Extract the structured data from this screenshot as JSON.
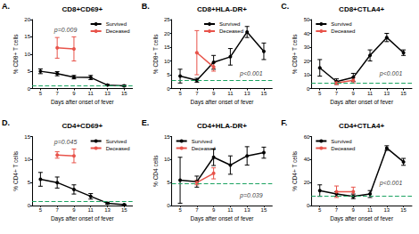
{
  "chart_data": [
    {
      "type": "line",
      "panel_label": "A.",
      "title": "CD8+CD69+",
      "x_label": "Days after onset of fever",
      "y_label": "% CD8+ T cells",
      "xlim": [
        4,
        16
      ],
      "xticks": [
        5,
        7,
        9,
        11,
        13,
        15
      ],
      "ylim": [
        0,
        20
      ],
      "yticks": [
        0,
        5,
        10,
        15,
        20
      ],
      "grid": false,
      "legend": "upper right",
      "reference_line": 0.8,
      "annotation": {
        "text": "p=0.009",
        "x": 8,
        "y": 17
      },
      "series": [
        {
          "name": "Survived",
          "color": "#000000",
          "marker": "circle",
          "x": [
            5,
            7,
            9,
            11,
            13,
            15
          ],
          "values": [
            5,
            4.3,
            3.3,
            3.2,
            1,
            0.8
          ],
          "errors": [
            0.7,
            0.6,
            0.5,
            0.6,
            0.2,
            0.2
          ]
        },
        {
          "name": "Deceased",
          "color": "#e8534a",
          "marker": "circle",
          "x": [
            7,
            9
          ],
          "values": [
            11.8,
            11.5
          ],
          "errors": [
            3,
            3.5
          ]
        }
      ]
    },
    {
      "type": "line",
      "panel_label": "B.",
      "title": "CD8+HLA-DR+",
      "x_label": "Days after onset of fever",
      "y_label": "% CD8+ T cells",
      "xlim": [
        4,
        16
      ],
      "xticks": [
        5,
        7,
        9,
        11,
        13,
        15
      ],
      "ylim": [
        0,
        25
      ],
      "yticks": [
        0,
        5,
        10,
        15,
        20,
        25
      ],
      "grid": false,
      "legend": "upper center",
      "reference_line": 3,
      "annotation": {
        "text": "p<0.001",
        "x": 13.5,
        "y": 5.5
      },
      "series": [
        {
          "name": "Survived",
          "color": "#000000",
          "marker": "circle",
          "x": [
            5,
            7,
            9,
            11,
            13,
            15
          ],
          "values": [
            4.5,
            3,
            9.5,
            11.5,
            20.5,
            13.5
          ],
          "errors": [
            2.5,
            0.7,
            2.5,
            3,
            2,
            3
          ]
        },
        {
          "name": "Deceased",
          "color": "#e8534a",
          "marker": "circle",
          "x": [
            7,
            9
          ],
          "values": [
            13,
            7.8
          ],
          "errors": [
            8,
            1.5
          ]
        }
      ]
    },
    {
      "type": "line",
      "panel_label": "C.",
      "title": "CD8+CTLA4+",
      "x_label": "Days after onset of fever",
      "y_label": "% CD8+ T cells",
      "xlim": [
        4,
        16
      ],
      "xticks": [
        5,
        7,
        9,
        11,
        13,
        15
      ],
      "ylim": [
        0,
        50
      ],
      "yticks": [
        0,
        10,
        20,
        30,
        40,
        50
      ],
      "grid": false,
      "legend": "upper left",
      "reference_line": 4,
      "annotation": {
        "text": "p<0.001",
        "x": 13.5,
        "y": 11
      },
      "series": [
        {
          "name": "Survived",
          "color": "#000000",
          "marker": "circle",
          "x": [
            5,
            7,
            9,
            11,
            13,
            15
          ],
          "values": [
            15,
            5,
            8,
            24,
            37,
            26
          ],
          "errors": [
            6,
            2,
            3,
            4,
            3,
            2
          ]
        },
        {
          "name": "Deceased",
          "color": "#e8534a",
          "marker": "circle",
          "x": [
            7,
            9
          ],
          "values": [
            4,
            6
          ],
          "errors": [
            1,
            2
          ]
        }
      ]
    },
    {
      "type": "line",
      "panel_label": "D.",
      "title": "CD4+CD69+",
      "x_label": "Days after onset of fever",
      "y_label": "% CD4+ T cells",
      "xlim": [
        4,
        16
      ],
      "xticks": [
        5,
        7,
        9,
        11,
        13,
        15
      ],
      "ylim": [
        0,
        15
      ],
      "yticks": [
        0,
        5,
        10,
        15
      ],
      "grid": false,
      "legend": "upper right",
      "reference_line": 1,
      "annotation": {
        "text": "p=0.045",
        "x": 8,
        "y": 13.9
      },
      "series": [
        {
          "name": "Survived",
          "color": "#000000",
          "marker": "circle",
          "x": [
            5,
            7,
            9,
            11,
            13,
            15
          ],
          "values": [
            5.7,
            5,
            3.5,
            2,
            0.5,
            0.2
          ],
          "errors": [
            1.5,
            1.2,
            1,
            0.6,
            0.2,
            0.1
          ]
        },
        {
          "name": "Deceased",
          "color": "#e8534a",
          "marker": "circle",
          "x": [
            7,
            9
          ],
          "values": [
            11,
            10.8
          ],
          "errors": [
            0.7,
            1.5
          ]
        }
      ]
    },
    {
      "type": "line",
      "panel_label": "E.",
      "title": "CD4+HLA-DR+",
      "x_label": "Days after onset of fever",
      "y_label": "% CD4 cells",
      "xlim": [
        4,
        16
      ],
      "xticks": [
        5,
        7,
        9,
        11,
        13,
        15
      ],
      "ylim": [
        0,
        15
      ],
      "yticks": [
        0,
        5,
        10,
        15
      ],
      "grid": false,
      "legend": "upper left",
      "reference_line": 4.7,
      "annotation": {
        "text": "p=0.039",
        "x": 13.5,
        "y": 2.3
      },
      "series": [
        {
          "name": "Survived",
          "color": "#000000",
          "marker": "circle",
          "x": [
            5,
            7,
            9,
            11,
            13,
            15
          ],
          "values": [
            5.5,
            5.2,
            10.5,
            8.8,
            10.8,
            11.5
          ],
          "errors": [
            5,
            1.2,
            1.8,
            2,
            2,
            1.2
          ]
        },
        {
          "name": "Deceased",
          "color": "#e8534a",
          "marker": "circle",
          "x": [
            7,
            9
          ],
          "values": [
            5,
            7
          ],
          "errors": [
            0.5,
            1.2
          ]
        }
      ]
    },
    {
      "type": "line",
      "panel_label": "F.",
      "title": "CD4+CTLA4+",
      "x_label": "Days after onset of fever",
      "y_label": "% CD4+ T cells",
      "xlim": [
        4,
        16
      ],
      "xticks": [
        5,
        7,
        9,
        11,
        13,
        15
      ],
      "ylim": [
        0,
        60
      ],
      "yticks": [
        0,
        20,
        40,
        60
      ],
      "grid": false,
      "legend": "upper left",
      "reference_line": 8,
      "annotation": {
        "text": "p<0.001",
        "x": 13.5,
        "y": 20
      },
      "series": [
        {
          "name": "Survived",
          "color": "#000000",
          "marker": "circle",
          "x": [
            5,
            7,
            9,
            11,
            13,
            15
          ],
          "values": [
            13,
            10,
            8,
            10,
            50,
            38
          ],
          "errors": [
            5,
            2,
            2,
            3,
            2,
            3
          ]
        },
        {
          "name": "Deceased",
          "color": "#e8534a",
          "marker": "circle",
          "x": [
            7,
            9
          ],
          "values": [
            12,
            12
          ],
          "errors": [
            5,
            4
          ]
        }
      ]
    }
  ]
}
